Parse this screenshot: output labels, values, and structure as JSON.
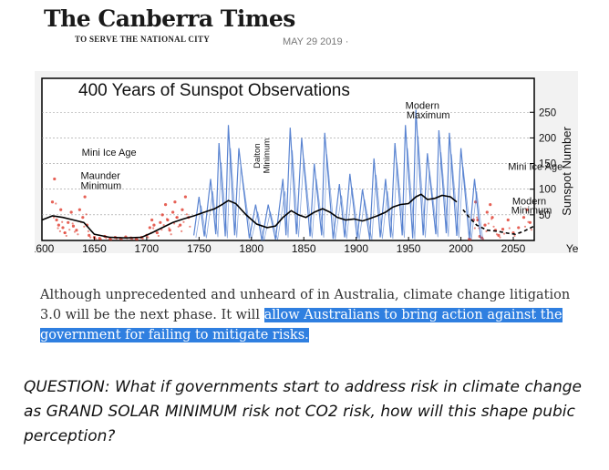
{
  "header": {
    "masthead": "The Canberra Times",
    "tagline": "TO SERVE THE NATIONAL CITY",
    "date": "MAY 29 2019 ·"
  },
  "chart_data": {
    "type": "line",
    "title": "400 Years of Sunspot Observations",
    "ylabel": "Sunspot Number",
    "xlabel": "Year",
    "xlim": [
      1600,
      2070
    ],
    "ylim": [
      0,
      270
    ],
    "x_ticks": [
      1600,
      1650,
      1700,
      1750,
      1800,
      1850,
      1900,
      1950,
      2000,
      2050
    ],
    "y_ticks": [
      50,
      100,
      150,
      200,
      250
    ],
    "grid": true,
    "annotations": [
      {
        "text": "Mini Ice Age",
        "x": 1638,
        "y": 165
      },
      {
        "text": "Maunder",
        "x": 1637,
        "y": 120
      },
      {
        "text": "Minimum",
        "x": 1637,
        "y": 100
      },
      {
        "text": "Dalton",
        "x": 1808,
        "y": 165
      },
      {
        "text": "Minimum",
        "x": 1817,
        "y": 165
      },
      {
        "text": "Modern",
        "x": 1947,
        "y": 257
      },
      {
        "text": "Maximum",
        "x": 1948,
        "y": 238
      },
      {
        "text": "Mini Ice Age",
        "x": 2045,
        "y": 138
      },
      {
        "text": "Modern",
        "x": 2049,
        "y": 70
      },
      {
        "text": "Minimum",
        "x": 2048,
        "y": 52
      }
    ],
    "series": [
      {
        "name": "",
        "style": "red-dots",
        "color": "#e03a2c",
        "points": [
          [
            1610,
            75
          ],
          [
            1612,
            120
          ],
          [
            1614,
            40
          ],
          [
            1616,
            30
          ],
          [
            1618,
            60
          ],
          [
            1620,
            25
          ],
          [
            1622,
            15
          ],
          [
            1625,
            35
          ],
          [
            1628,
            55
          ],
          [
            1630,
            28
          ],
          [
            1633,
            20
          ],
          [
            1636,
            60
          ],
          [
            1639,
            45
          ],
          [
            1641,
            85
          ],
          [
            1643,
            30
          ],
          [
            1645,
            10
          ],
          [
            1650,
            6
          ],
          [
            1655,
            4
          ],
          [
            1660,
            8
          ],
          [
            1665,
            3
          ],
          [
            1670,
            6
          ],
          [
            1675,
            4
          ],
          [
            1680,
            7
          ],
          [
            1685,
            5
          ],
          [
            1690,
            3
          ],
          [
            1695,
            6
          ],
          [
            1700,
            10
          ],
          [
            1703,
            25
          ],
          [
            1705,
            40
          ],
          [
            1707,
            30
          ],
          [
            1710,
            15
          ],
          [
            1713,
            35
          ],
          [
            1715,
            50
          ],
          [
            1718,
            70
          ],
          [
            1720,
            40
          ],
          [
            1722,
            20
          ],
          [
            1725,
            55
          ],
          [
            1727,
            75
          ],
          [
            1729,
            45
          ],
          [
            1732,
            30
          ],
          [
            1734,
            60
          ],
          [
            1737,
            85
          ],
          [
            1740,
            45
          ],
          [
            2008,
            3
          ],
          [
            2012,
            40
          ],
          [
            2014,
            75
          ],
          [
            2016,
            40
          ],
          [
            2018,
            8
          ],
          [
            2020,
            5
          ],
          [
            2023,
            30
          ],
          [
            2025,
            55
          ],
          [
            2028,
            70
          ],
          [
            2030,
            45
          ],
          [
            2033,
            20
          ],
          [
            2036,
            10
          ],
          [
            2040,
            22
          ],
          [
            2045,
            40
          ],
          [
            2050,
            15
          ],
          [
            2055,
            25
          ],
          [
            2060,
            45
          ],
          [
            2063,
            60
          ],
          [
            2066,
            35
          ]
        ]
      },
      {
        "name": "",
        "style": "blue-cycles",
        "color": "#3d6fc9",
        "peaks": [
          [
            1750,
            85
          ],
          [
            1761,
            120
          ],
          [
            1769,
            190
          ],
          [
            1778,
            225
          ],
          [
            1788,
            180
          ],
          [
            1804,
            70
          ],
          [
            1816,
            70
          ],
          [
            1830,
            120
          ],
          [
            1837,
            220
          ],
          [
            1848,
            200
          ],
          [
            1860,
            150
          ],
          [
            1870,
            210
          ],
          [
            1884,
            110
          ],
          [
            1894,
            130
          ],
          [
            1906,
            100
          ],
          [
            1917,
            160
          ],
          [
            1928,
            120
          ],
          [
            1937,
            190
          ],
          [
            1947,
            225
          ],
          [
            1957,
            255
          ],
          [
            1968,
            170
          ],
          [
            1979,
            215
          ],
          [
            1989,
            210
          ],
          [
            2000,
            180
          ],
          [
            2013,
            120
          ]
        ],
        "minima": [
          [
            1745,
            10
          ],
          [
            1755,
            8
          ],
          [
            1766,
            12
          ],
          [
            1775,
            8
          ],
          [
            1784,
            10
          ],
          [
            1798,
            4
          ],
          [
            1810,
            0
          ],
          [
            1823,
            2
          ],
          [
            1833,
            10
          ],
          [
            1843,
            12
          ],
          [
            1856,
            8
          ],
          [
            1867,
            10
          ],
          [
            1878,
            3
          ],
          [
            1889,
            6
          ],
          [
            1901,
            4
          ],
          [
            1913,
            2
          ],
          [
            1923,
            6
          ],
          [
            1933,
            6
          ],
          [
            1944,
            10
          ],
          [
            1954,
            4
          ],
          [
            1964,
            10
          ],
          [
            1976,
            12
          ],
          [
            1986,
            14
          ],
          [
            1996,
            9
          ],
          [
            2008,
            3
          ],
          [
            2019,
            3
          ]
        ]
      },
      {
        "name": "",
        "style": "smoothed-black",
        "color": "#000000",
        "points": [
          [
            1600,
            40
          ],
          [
            1610,
            48
          ],
          [
            1620,
            45
          ],
          [
            1630,
            40
          ],
          [
            1640,
            35
          ],
          [
            1650,
            12
          ],
          [
            1665,
            6
          ],
          [
            1680,
            5
          ],
          [
            1695,
            6
          ],
          [
            1705,
            15
          ],
          [
            1715,
            25
          ],
          [
            1725,
            35
          ],
          [
            1735,
            42
          ],
          [
            1745,
            48
          ],
          [
            1755,
            55
          ],
          [
            1765,
            62
          ],
          [
            1772,
            70
          ],
          [
            1778,
            78
          ],
          [
            1785,
            72
          ],
          [
            1795,
            50
          ],
          [
            1805,
            32
          ],
          [
            1815,
            25
          ],
          [
            1823,
            28
          ],
          [
            1830,
            45
          ],
          [
            1838,
            58
          ],
          [
            1845,
            50
          ],
          [
            1852,
            45
          ],
          [
            1860,
            55
          ],
          [
            1868,
            62
          ],
          [
            1875,
            55
          ],
          [
            1882,
            45
          ],
          [
            1890,
            40
          ],
          [
            1898,
            42
          ],
          [
            1906,
            38
          ],
          [
            1912,
            42
          ],
          [
            1920,
            48
          ],
          [
            1928,
            55
          ],
          [
            1935,
            65
          ],
          [
            1942,
            70
          ],
          [
            1950,
            72
          ],
          [
            1957,
            85
          ],
          [
            1962,
            90
          ],
          [
            1968,
            80
          ],
          [
            1975,
            82
          ],
          [
            1982,
            88
          ],
          [
            1990,
            85
          ],
          [
            1996,
            75
          ],
          [
            2002,
            60
          ],
          [
            2008,
            45
          ],
          [
            2015,
            30
          ],
          [
            2025,
            20
          ],
          [
            2035,
            18
          ],
          [
            2045,
            14
          ],
          [
            2052,
            12
          ],
          [
            2060,
            18
          ],
          [
            2070,
            28
          ]
        ],
        "dashed_from": 2000
      }
    ]
  },
  "article": {
    "text_plain": "Although unprecedented and unheard of in Australia, climate change litigation 3.0 will be the next phase. It will ",
    "text_highlight": "allow Australians to bring action against the government for failing to mitigate risks."
  },
  "question": {
    "text": "QUESTION: What if governments start to address risk in climate change as GRAND SOLAR MINIMUM risk not CO2 risk, how will this shape pubic perception?"
  }
}
